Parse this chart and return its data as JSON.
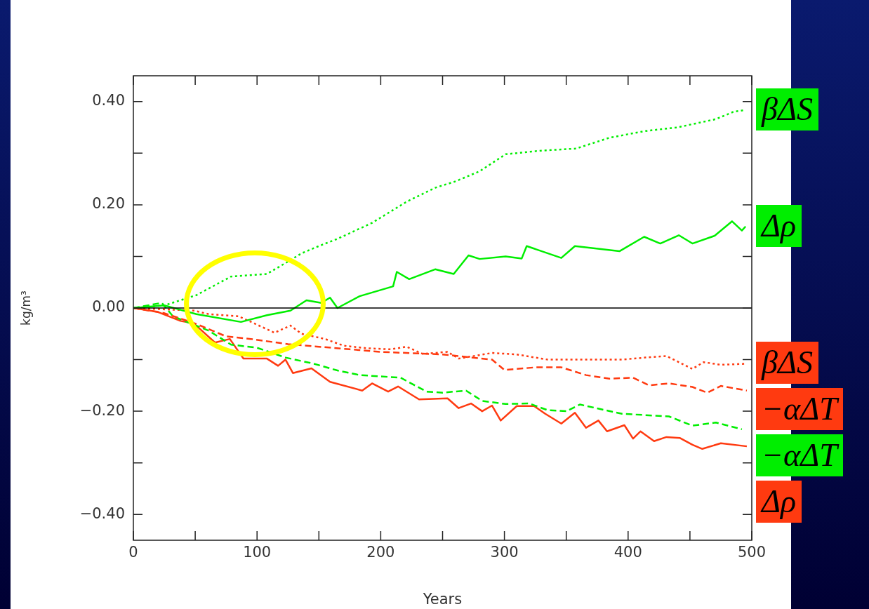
{
  "chart_data": {
    "type": "line",
    "xlabel": "Years",
    "ylabel": "kg/m³",
    "xlim": [
      0,
      500
    ],
    "xticks": [
      0,
      {
        "value": 50,
        "label": null
      },
      100,
      {
        "value": 150,
        "label": null
      },
      200,
      {
        "value": 250,
        "label": null
      },
      300,
      {
        "value": 350,
        "label": null
      },
      400,
      {
        "value": 450,
        "label": null
      },
      500
    ],
    "ylim": [
      -0.45,
      0.45
    ],
    "yticks": [
      {
        "value": -0.4,
        "label": "−0.40"
      },
      {
        "value": -0.3,
        "label": null
      },
      {
        "value": -0.2,
        "label": "−0.20"
      },
      {
        "value": -0.1,
        "label": null
      },
      {
        "value": 0,
        "label": "0.00"
      },
      {
        "value": 0.1,
        "label": null
      },
      {
        "value": 0.2,
        "label": "0.20"
      },
      {
        "value": 0.3,
        "label": null
      },
      {
        "value": 0.4,
        "label": "0.40"
      }
    ],
    "grid": false,
    "legend": false,
    "marker": "none",
    "ref_lines": [
      {
        "axis": "y",
        "value": 0,
        "color": "#000000",
        "line_style": "solid"
      }
    ],
    "series": [
      {
        "name": "βΔS",
        "color": "#00ee00",
        "line_style": "dotted",
        "x": [
          0,
          25,
          51,
          79,
          108,
          125,
          136,
          150,
          165,
          193,
          221,
          244,
          260,
          280,
          301,
          330,
          358,
          385,
          414,
          440,
          471,
          485,
          495
        ],
        "values": [
          0,
          0.005,
          0.025,
          0.061,
          0.066,
          0.09,
          0.106,
          0.12,
          0.134,
          0.165,
          0.206,
          0.233,
          0.245,
          0.265,
          0.298,
          0.305,
          0.309,
          0.33,
          0.343,
          0.35,
          0.366,
          0.38,
          0.384
        ]
      },
      {
        "name": "Δρ",
        "color": "#00ee00",
        "line_style": "solid",
        "x": [
          0,
          25,
          51,
          87,
          108,
          127,
          140,
          152,
          159,
          165,
          183,
          210,
          213,
          223,
          244,
          259,
          271,
          280,
          301,
          314,
          318,
          346,
          357,
          393,
          413,
          426,
          441,
          452,
          470,
          484,
          492,
          495
        ],
        "values": [
          0,
          0.005,
          -0.012,
          -0.027,
          -0.014,
          -0.005,
          0.015,
          0.01,
          0.02,
          0,
          0.023,
          0.042,
          0.07,
          0.056,
          0.075,
          0.066,
          0.102,
          0.095,
          0.1,
          0.096,
          0.12,
          0.097,
          0.12,
          0.11,
          0.138,
          0.125,
          0.141,
          0.125,
          0.14,
          0.168,
          0.15,
          0.158
        ]
      },
      {
        "name": "βΔS",
        "color": "#ff3a10",
        "line_style": "dotted",
        "x": [
          0,
          49,
          61,
          85,
          98,
          114,
          127,
          136,
          155,
          170,
          189,
          208,
          221,
          234,
          254,
          263,
          290,
          310,
          335,
          357,
          395,
          414,
          431,
          452,
          461,
          475,
          496
        ],
        "values": [
          0,
          -0.005,
          -0.012,
          -0.016,
          -0.03,
          -0.048,
          -0.034,
          -0.05,
          -0.06,
          -0.073,
          -0.078,
          -0.08,
          -0.075,
          -0.089,
          -0.085,
          -0.098,
          -0.087,
          -0.09,
          -0.1,
          -0.1,
          -0.1,
          -0.096,
          -0.093,
          -0.118,
          -0.105,
          -0.11,
          -0.108
        ]
      },
      {
        "name": "−αΔT",
        "color": "#ff3a10",
        "line_style": "dashed",
        "x": [
          0,
          25,
          50,
          75,
          95,
          125,
          150,
          175,
          200,
          250,
          290,
          300,
          325,
          346,
          366,
          385,
          404,
          417,
          433,
          452,
          464,
          475,
          496
        ],
        "values": [
          0,
          -0.01,
          -0.03,
          -0.055,
          -0.06,
          -0.07,
          -0.075,
          -0.08,
          -0.085,
          -0.09,
          -0.1,
          -0.12,
          -0.115,
          -0.115,
          -0.13,
          -0.137,
          -0.135,
          -0.15,
          -0.146,
          -0.153,
          -0.164,
          -0.151,
          -0.16
        ]
      },
      {
        "name": "−αΔT",
        "color": "#00ee00",
        "line_style": "dashed",
        "x": [
          0,
          23,
          32,
          61,
          79,
          100,
          123,
          146,
          165,
          183,
          216,
          237,
          250,
          269,
          282,
          301,
          320,
          335,
          350,
          361,
          395,
          433,
          452,
          471,
          492
        ],
        "values": [
          0,
          0.01,
          -0.016,
          -0.044,
          -0.071,
          -0.077,
          -0.096,
          -0.108,
          -0.121,
          -0.13,
          -0.135,
          -0.162,
          -0.164,
          -0.16,
          -0.18,
          -0.186,
          -0.185,
          -0.198,
          -0.2,
          -0.187,
          -0.205,
          -0.21,
          -0.228,
          -0.222,
          -0.235
        ]
      },
      {
        "name": "Δρ",
        "color": "#ff3a10",
        "line_style": "solid",
        "x": [
          0,
          19,
          38,
          49,
          66,
          78,
          89,
          108,
          117,
          123,
          129,
          144,
          159,
          185,
          193,
          206,
          214,
          231,
          254,
          263,
          273,
          282,
          290,
          297,
          310,
          324,
          333,
          346,
          357,
          366,
          376,
          383,
          397,
          404,
          410,
          421,
          431,
          442,
          452,
          460,
          475,
          496
        ],
        "values": [
          0,
          -0.007,
          -0.025,
          -0.03,
          -0.067,
          -0.06,
          -0.098,
          -0.098,
          -0.112,
          -0.1,
          -0.126,
          -0.117,
          -0.143,
          -0.16,
          -0.146,
          -0.162,
          -0.152,
          -0.177,
          -0.175,
          -0.194,
          -0.185,
          -0.2,
          -0.189,
          -0.218,
          -0.19,
          -0.19,
          -0.205,
          -0.224,
          -0.203,
          -0.232,
          -0.218,
          -0.239,
          -0.227,
          -0.253,
          -0.239,
          -0.258,
          -0.25,
          -0.252,
          -0.265,
          -0.273,
          -0.262,
          -0.268
        ]
      }
    ]
  }
}
